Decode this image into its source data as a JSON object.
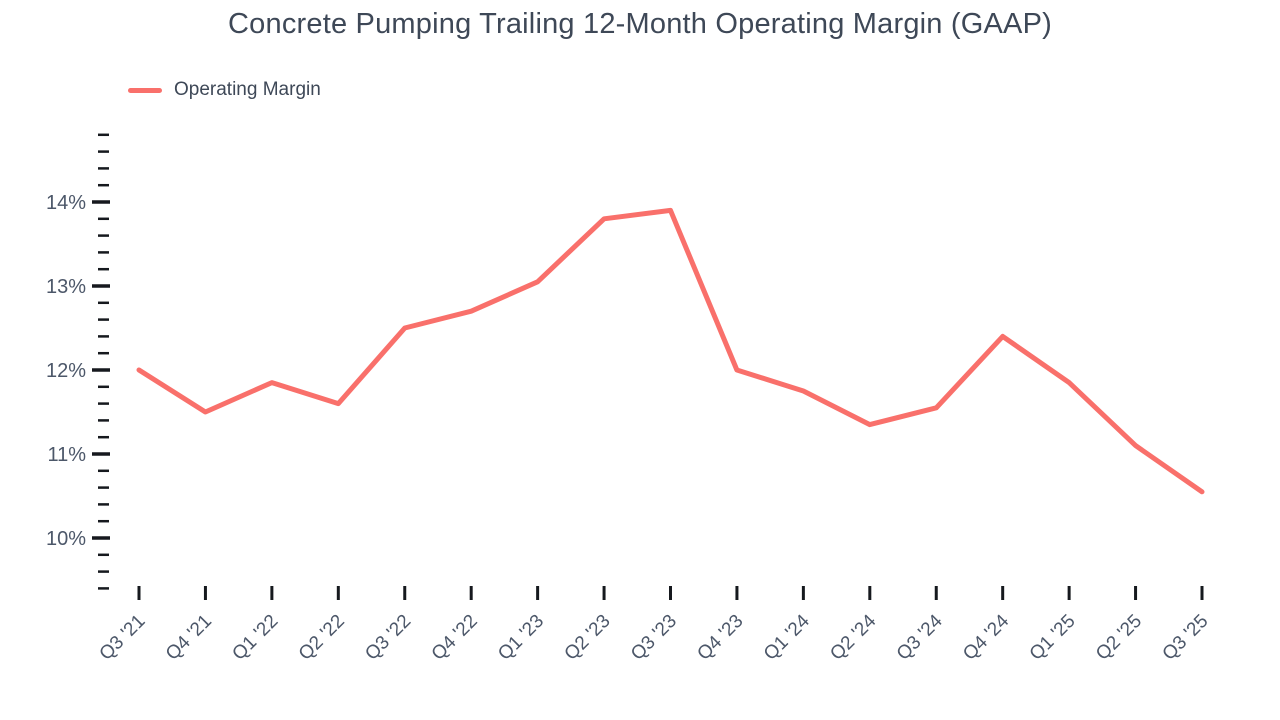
{
  "title": "Concrete Pumping Trailing 12-Month Operating Margin (GAAP)",
  "legend": {
    "label": "Operating Margin"
  },
  "chart_data": {
    "type": "line",
    "title": "Concrete Pumping Trailing 12-Month Operating Margin (GAAP)",
    "categories": [
      "Q3 '21",
      "Q4 '21",
      "Q1 '22",
      "Q2 '22",
      "Q3 '22",
      "Q4 '22",
      "Q1 '23",
      "Q2 '23",
      "Q3 '23",
      "Q4 '23",
      "Q1 '24",
      "Q2 '24",
      "Q3 '24",
      "Q4 '24",
      "Q1 '25",
      "Q2 '25",
      "Q3 '25"
    ],
    "series": [
      {
        "name": "Operating Margin",
        "values": [
          12.0,
          11.5,
          11.85,
          11.6,
          12.5,
          12.7,
          13.05,
          13.8,
          13.9,
          12.0,
          11.75,
          11.35,
          11.55,
          12.4,
          11.85,
          11.1,
          10.55
        ]
      }
    ],
    "xlabel": "",
    "ylabel": "",
    "ylim": [
      9.4,
      14.8
    ],
    "y_major_ticks": [
      10,
      11,
      12,
      13,
      14
    ],
    "y_tick_labels": [
      "10%",
      "11%",
      "12%",
      "13%",
      "14%"
    ],
    "y_minor_tick_step": 0.2,
    "grid": false,
    "legend_position": "top-left",
    "colors": {
      "line": "#F9706B",
      "title_text": "#3E4857",
      "axis_text": "#4C5769",
      "tick_mark": "#16191E"
    }
  }
}
